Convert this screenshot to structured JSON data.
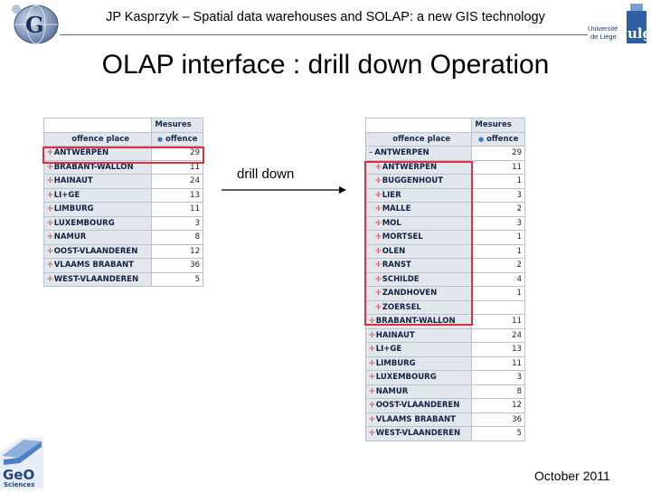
{
  "header": {
    "title": "JP Kasprzyk – Spatial data warehouses and SOLAP: a new GIS technology",
    "main_title": "OLAP interface : drill down Operation"
  },
  "logos": {
    "left": "",
    "right": "Université de Liège",
    "right_mark": "ulg",
    "geo_top": "GeO",
    "geo_bottom": "Sciences"
  },
  "arrow": {
    "label": "drill down"
  },
  "footer": {
    "date": "October 2011"
  },
  "tables": {
    "measures_header": "Mesures",
    "dim_header": "offence place",
    "measure_header": "offence",
    "left_rows": [
      {
        "name": "ANTWERPEN",
        "value": "29"
      },
      {
        "name": "BRABANT-WALLON",
        "value": "11"
      },
      {
        "name": "HAINAUT",
        "value": "24"
      },
      {
        "name": "LI+GE",
        "value": "13"
      },
      {
        "name": "LIMBURG",
        "value": "11"
      },
      {
        "name": "LUXEMBOURG",
        "value": "3"
      },
      {
        "name": "NAMUR",
        "value": "8"
      },
      {
        "name": "OOST-VLAANDEREN",
        "value": "12"
      },
      {
        "name": "VLAAMS BRABANT",
        "value": "36"
      },
      {
        "name": "WEST-VLAANDEREN",
        "value": "5"
      }
    ],
    "right_parent": {
      "name": "ANTWERPEN",
      "value": "29"
    },
    "right_children": [
      {
        "name": "ANTWERPEN",
        "value": "11"
      },
      {
        "name": "BUGGENHOUT",
        "value": "1"
      },
      {
        "name": "LIER",
        "value": "3"
      },
      {
        "name": "MALLE",
        "value": "2"
      },
      {
        "name": "MOL",
        "value": "3"
      },
      {
        "name": "MORTSEL",
        "value": "1"
      },
      {
        "name": "OLEN",
        "value": "1"
      },
      {
        "name": "RANST",
        "value": "2"
      },
      {
        "name": "SCHILDE",
        "value": "4"
      },
      {
        "name": "ZANDHOVEN",
        "value": "1"
      },
      {
        "name": "ZOERSEL",
        "value": ""
      }
    ],
    "right_rows": [
      {
        "name": "BRABANT-WALLON",
        "value": "11"
      },
      {
        "name": "HAINAUT",
        "value": "24"
      },
      {
        "name": "LI+GE",
        "value": "13"
      },
      {
        "name": "LIMBURG",
        "value": "11"
      },
      {
        "name": "LUXEMBOURG",
        "value": "3"
      },
      {
        "name": "NAMUR",
        "value": "8"
      },
      {
        "name": "OOST-VLAANDEREN",
        "value": "12"
      },
      {
        "name": "VLAAMS BRABANT",
        "value": "36"
      },
      {
        "name": "WEST-VLAANDEREN",
        "value": "5"
      }
    ]
  },
  "colors": {
    "highlight": "#e0303a",
    "header_bg": "#e2e7ee",
    "expand_marker": "#e04040"
  },
  "icons": {
    "expand": "plus-icon",
    "collapse": "minus-icon",
    "sort": "sort-dot-icon"
  }
}
